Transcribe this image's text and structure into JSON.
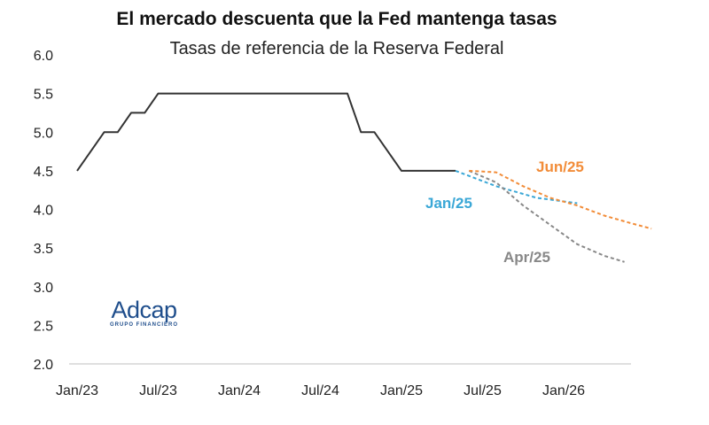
{
  "chart_data": {
    "type": "line",
    "title": "El mercado descuenta que la Fed mantenga tasas",
    "subtitle": "Tasas de referencia de la Reserva Federal",
    "xlabel": "",
    "ylabel": "",
    "ylim": [
      2.0,
      6.0
    ],
    "yticks": [
      "6.0",
      "5.5",
      "5.0",
      "4.5",
      "4.0",
      "3.5",
      "3.0",
      "2.5",
      "2.0"
    ],
    "xticks": [
      "Jan/23",
      "Jul/23",
      "Jan/24",
      "Jul/24",
      "Jan/25",
      "Jul/25",
      "Jan/26"
    ],
    "x_units": "months since Jan/23",
    "series": [
      {
        "name": "Fed",
        "color": "#333333",
        "style": "solid",
        "label": "",
        "points": [
          [
            0,
            4.5
          ],
          [
            2,
            5.0
          ],
          [
            3,
            5.0
          ],
          [
            4,
            5.25
          ],
          [
            5,
            5.25
          ],
          [
            6,
            5.5
          ],
          [
            20,
            5.5
          ],
          [
            21,
            5.0
          ],
          [
            22,
            5.0
          ],
          [
            24,
            4.5
          ],
          [
            28,
            4.5
          ]
        ]
      },
      {
        "name": "Jan/25",
        "color": "#3aa7d6",
        "style": "dashed",
        "label": "Jan/25",
        "points": [
          [
            28,
            4.5
          ],
          [
            31,
            4.3
          ],
          [
            34,
            4.15
          ],
          [
            37,
            4.08
          ]
        ]
      },
      {
        "name": "Apr/25",
        "color": "#888888",
        "style": "dashed",
        "label": "Apr/25",
        "points": [
          [
            29,
            4.5
          ],
          [
            31,
            4.35
          ],
          [
            33,
            4.05
          ],
          [
            35,
            3.8
          ],
          [
            37,
            3.55
          ],
          [
            39,
            3.4
          ],
          [
            40.5,
            3.32
          ]
        ]
      },
      {
        "name": "Jun/25",
        "color": "#f28c38",
        "style": "dashed",
        "label": "Jun/25",
        "points": [
          [
            29,
            4.5
          ],
          [
            31,
            4.48
          ],
          [
            33,
            4.3
          ],
          [
            35,
            4.15
          ],
          [
            37,
            4.05
          ],
          [
            39,
            3.92
          ],
          [
            41,
            3.82
          ],
          [
            42.5,
            3.75
          ]
        ]
      }
    ]
  },
  "logo": {
    "name": "Adcap",
    "tagline": "GRUPO FINANCIERO"
  }
}
